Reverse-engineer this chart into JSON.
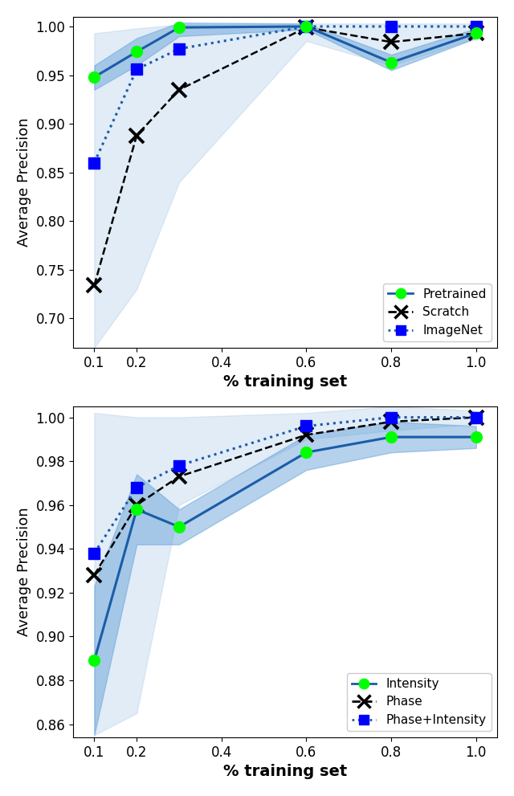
{
  "x": [
    0.1,
    0.2,
    0.3,
    0.6,
    0.8,
    1.0
  ],
  "plot1": {
    "pretrained_mean": [
      0.948,
      0.974,
      0.999,
      1.0,
      0.963,
      0.993
    ],
    "pretrained_lower": [
      0.935,
      0.96,
      0.99,
      0.997,
      0.955,
      0.988
    ],
    "pretrained_upper": [
      0.96,
      0.988,
      1.004,
      1.003,
      0.971,
      0.998
    ],
    "scratch_mean": [
      0.734,
      0.888,
      0.935,
      0.999,
      0.984,
      0.993
    ],
    "imagenet_mean": [
      0.86,
      0.956,
      0.977,
      1.0,
      1.0,
      1.0
    ],
    "imagenet_lower": [
      0.67,
      0.73,
      0.84,
      0.985,
      0.96,
      0.988
    ],
    "imagenet_upper": [
      0.993,
      0.998,
      1.002,
      1.003,
      1.003,
      1.003
    ],
    "ylim": [
      0.67,
      1.01
    ],
    "yticks": [
      0.7,
      0.75,
      0.8,
      0.85,
      0.9,
      0.95,
      1.0
    ]
  },
  "plot2": {
    "intensity_mean": [
      0.889,
      0.958,
      0.95,
      0.984,
      0.991,
      0.991
    ],
    "intensity_lower": [
      0.855,
      0.942,
      0.942,
      0.976,
      0.984,
      0.986
    ],
    "intensity_upper": [
      0.923,
      0.974,
      0.958,
      0.992,
      0.998,
      0.996
    ],
    "phase_mean": [
      0.928,
      0.96,
      0.973,
      0.992,
      0.998,
      1.0
    ],
    "phaseint_mean": [
      0.938,
      0.968,
      0.978,
      0.996,
      1.0,
      1.0
    ],
    "phaseint_lower": [
      0.855,
      0.865,
      0.96,
      0.99,
      0.994,
      0.997
    ],
    "phaseint_upper": [
      1.002,
      1.0,
      1.0,
      1.002,
      1.005,
      1.003
    ],
    "ylim": [
      0.854,
      1.005
    ],
    "yticks": [
      0.86,
      0.88,
      0.9,
      0.92,
      0.94,
      0.96,
      0.98,
      1.0
    ]
  },
  "line_color_darkblue": "#1a5ca8",
  "line_color_blue": "#1f6fbf",
  "line_color_green": "#00ff00",
  "line_color_black": "#000000",
  "fill_color_pretrained": "#5b9bd5",
  "fill_color_imagenet": "#9dc3e6",
  "xlabel": "% training set",
  "ylabel": "Average Precision",
  "legend1_labels": [
    "Pretrained",
    "Scratch",
    "ImageNet"
  ],
  "legend2_labels": [
    "Intensity",
    "Phase",
    "Phase+Intensity"
  ],
  "xticks": [
    0.1,
    0.2,
    0.4,
    0.6,
    0.8,
    1.0
  ]
}
